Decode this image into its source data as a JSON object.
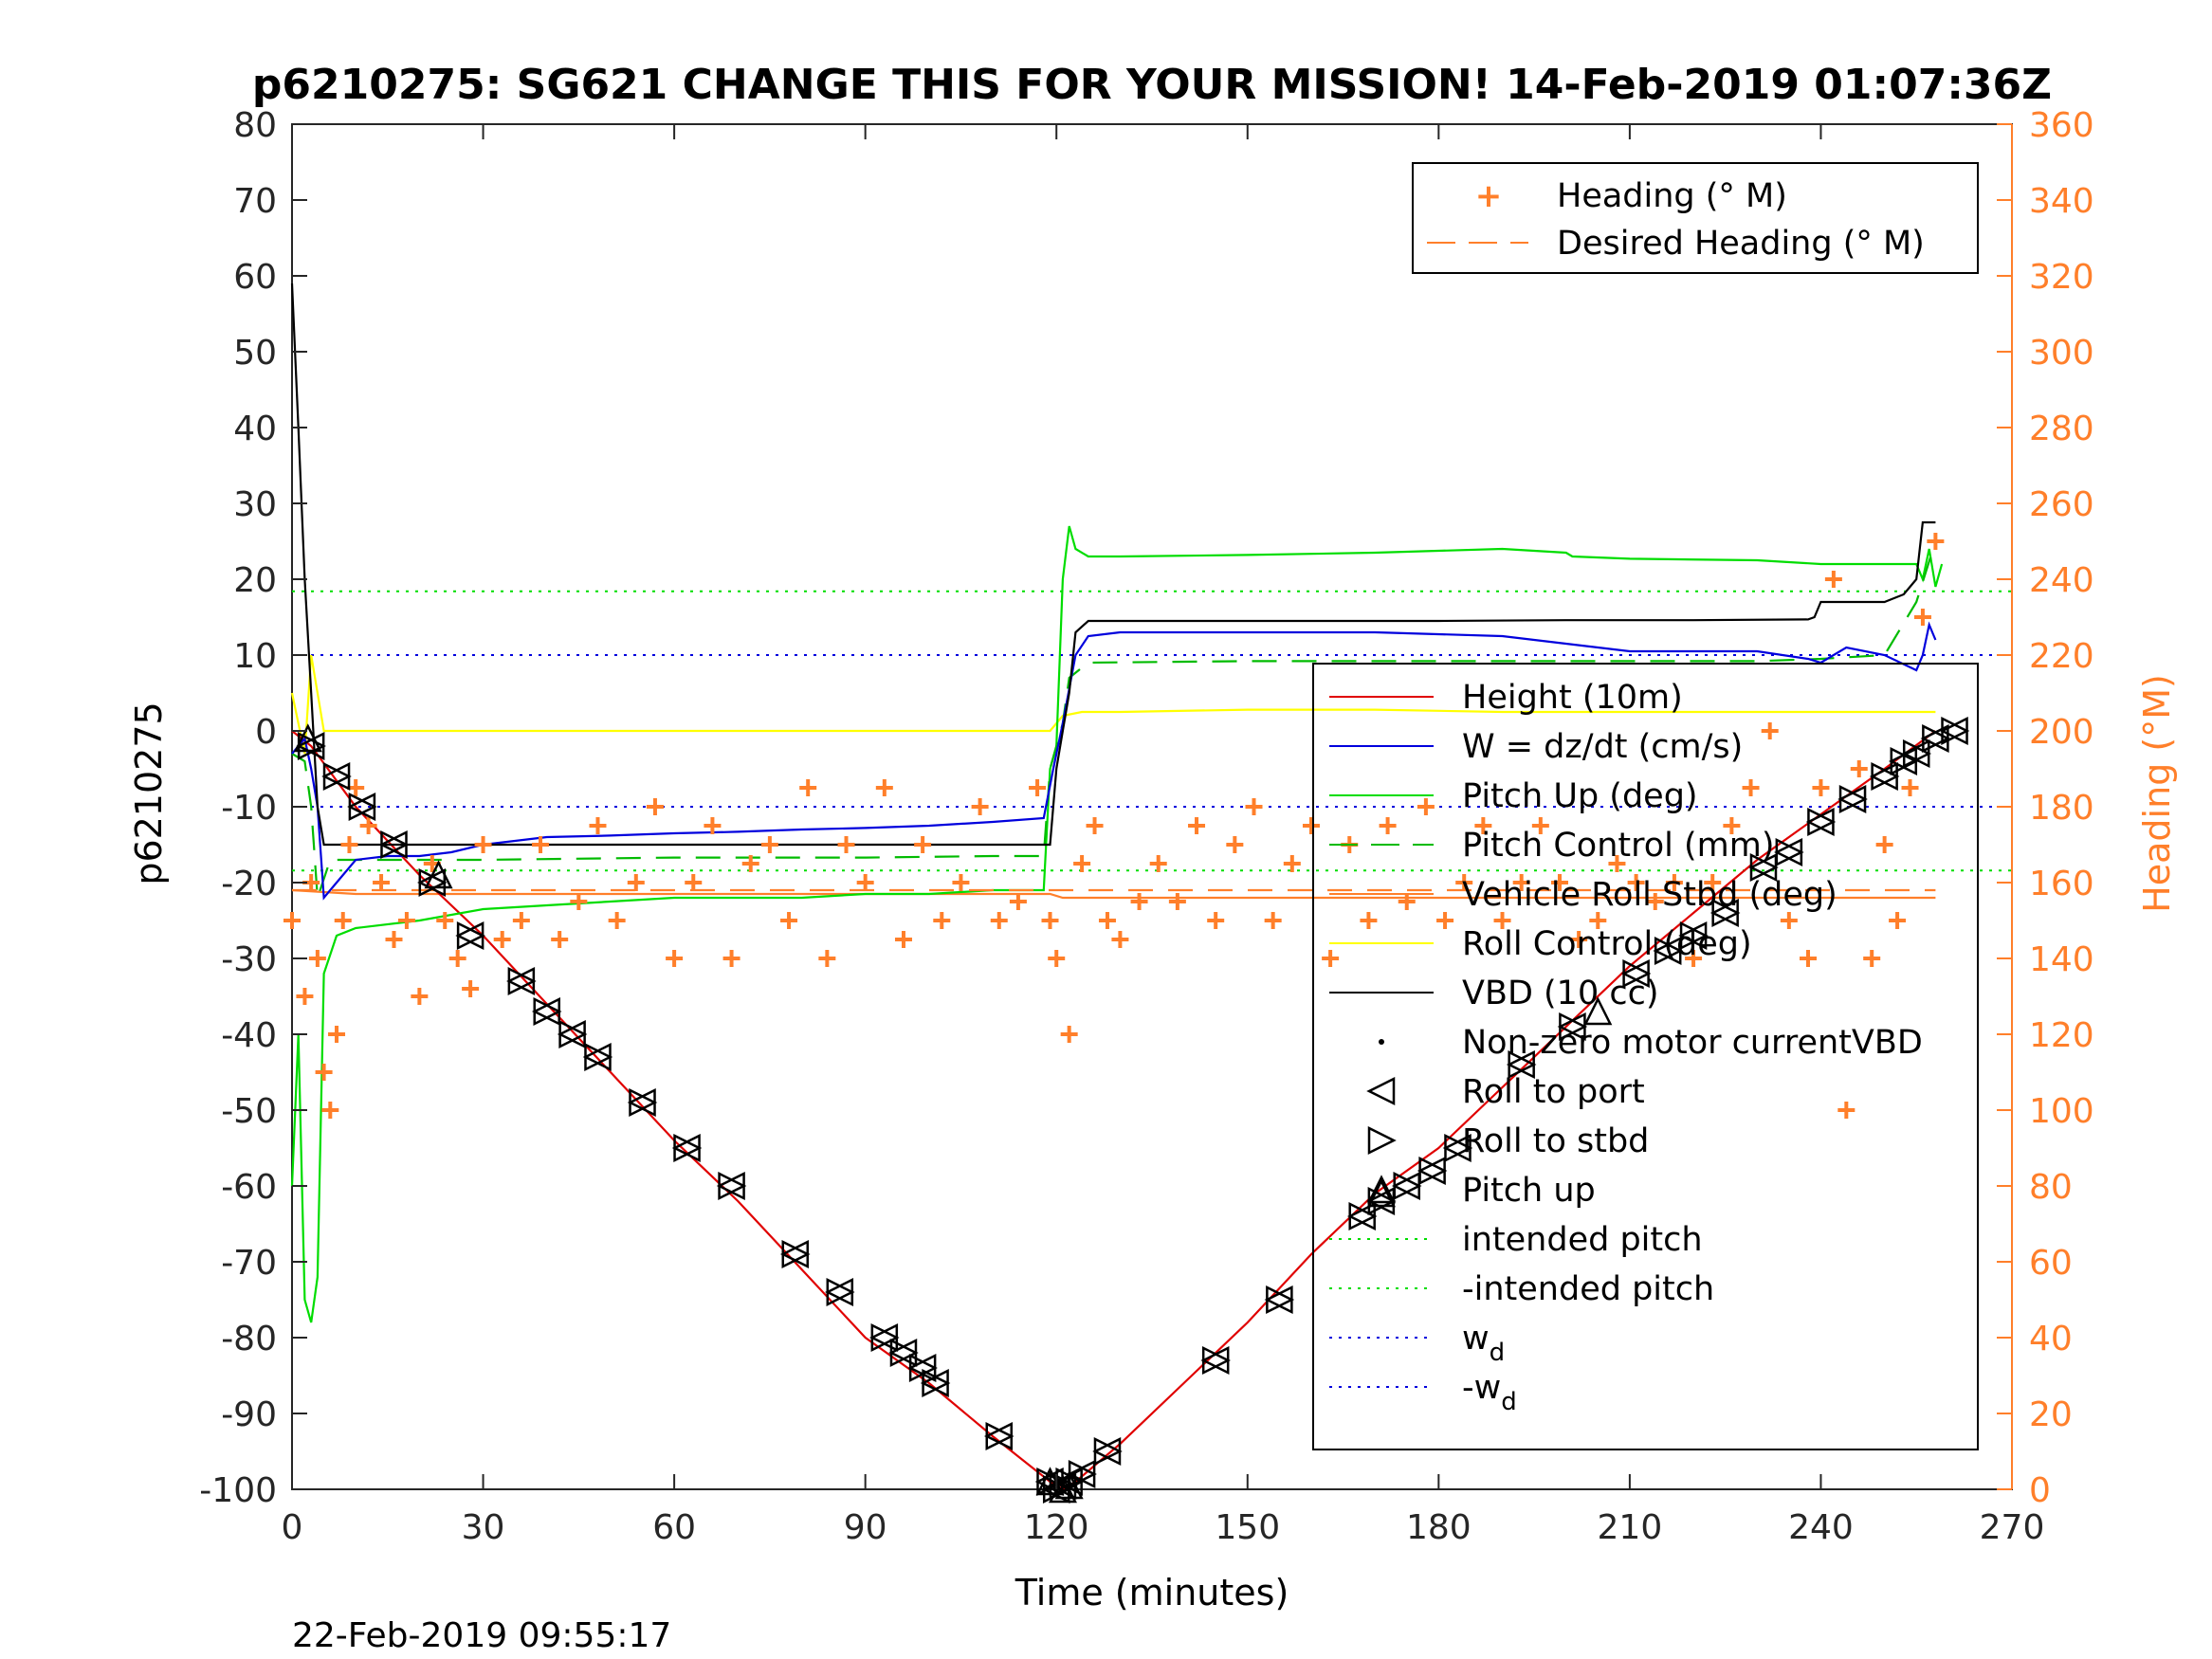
{
  "chart_data": {
    "type": "line",
    "title": "p6210275: SG621 CHANGE THIS FOR YOUR MISSION! 14-Feb-2019 01:07:36Z",
    "xlabel": "Time (minutes)",
    "ylabel": "p6210275",
    "y2label": "Heading (°M)",
    "xlim": [
      0,
      270
    ],
    "ylim": [
      -100,
      80
    ],
    "y2lim": [
      0,
      360
    ],
    "xticks": [
      "0",
      "30",
      "60",
      "90",
      "120",
      "150",
      "180",
      "210",
      "240",
      "270"
    ],
    "yticks": [
      "80",
      "70",
      "60",
      "50",
      "40",
      "30",
      "20",
      "10",
      "0",
      "-10",
      "-20",
      "-30",
      "-40",
      "-50",
      "-60",
      "-70",
      "-80",
      "-90",
      "-100"
    ],
    "y2ticks": [
      "360",
      "340",
      "320",
      "300",
      "280",
      "260",
      "240",
      "220",
      "200",
      "180",
      "160",
      "140",
      "120",
      "100",
      "80",
      "60",
      "40",
      "20",
      "0"
    ],
    "grid": false,
    "timestamp": "22-Feb-2019 09:55:17",
    "legend_right_axis": {
      "placement": "top-right",
      "entries": [
        {
          "label": "Heading (° M)",
          "color": "#ff7f2a"
        },
        {
          "label": "Desired Heading (° M)",
          "color": "#ff7f2a"
        }
      ]
    },
    "legend_left_axis": {
      "placement": "right",
      "entries": [
        {
          "label": "Height (10m)",
          "color": "#e00000"
        },
        {
          "label": "W = dz/dt (cm/s)",
          "color": "#0000dd"
        },
        {
          "label": "Pitch Up (deg)",
          "color": "#00dd00"
        },
        {
          "label": "Pitch Control (mm)",
          "color": "#00bb00"
        },
        {
          "label": "Vehicle Roll Stbd (deg)",
          "color": "#ff7f2a"
        },
        {
          "label": "Roll Control (deg)",
          "color": "#ffff00"
        },
        {
          "label": "VBD (10 cc)",
          "color": "#000000"
        },
        {
          "label": "Non-zero motor currentVBD",
          "color": "#000000"
        },
        {
          "label": "Roll to port",
          "color": "#000000"
        },
        {
          "label": "Roll to stbd",
          "color": "#000000"
        },
        {
          "label": "Pitch up",
          "color": "#000000"
        },
        {
          "label": "intended pitch",
          "color": "#00dd00"
        },
        {
          "label": "-intended pitch",
          "color": "#00dd00"
        },
        {
          "label": "w",
          "sub": "d",
          "color": "#0000dd"
        },
        {
          "label": "-w",
          "sub": "d",
          "color": "#0000dd"
        }
      ]
    },
    "reference_lines": {
      "intended_pitch": 18.4,
      "neg_intended_pitch": -18.4,
      "w_d": 10,
      "neg_w_d": -10
    },
    "series": [
      {
        "name": "Height (10m)",
        "axis": "left",
        "color": "#e00000",
        "x": [
          0,
          3,
          10,
          20,
          30,
          40,
          50,
          60,
          70,
          80,
          90,
          100,
          110,
          119,
          121,
          123,
          130,
          140,
          150,
          160,
          170,
          180,
          190,
          200,
          210,
          220,
          230,
          240,
          250,
          258
        ],
        "y": [
          0,
          -2,
          -10,
          -19,
          -27,
          -36,
          -45,
          -54,
          -62,
          -71,
          -80,
          -86,
          -93,
          -99,
          -100,
          -99,
          -94,
          -86,
          -78,
          -69,
          -61,
          -55,
          -47,
          -39,
          -31,
          -24,
          -17,
          -11,
          -5,
          0
        ]
      },
      {
        "name": "W = dz/dt (cm/s)",
        "axis": "left",
        "color": "#0000dd",
        "x": [
          0,
          2,
          3,
          4,
          5,
          7,
          10,
          15,
          20,
          25,
          30,
          40,
          50,
          60,
          70,
          80,
          90,
          100,
          110,
          118,
          119.5,
          121,
          123,
          125,
          130,
          150,
          170,
          190,
          200,
          210,
          220,
          230,
          238,
          240,
          244,
          250,
          255,
          256,
          257,
          258
        ],
        "y": [
          -3,
          -1,
          -5,
          -10,
          -22,
          -20,
          -17,
          -16.5,
          -16.5,
          -16,
          -15,
          -14,
          -13.8,
          -13.5,
          -13.3,
          -13,
          -12.8,
          -12.5,
          -12,
          -11.5,
          -5,
          1,
          10,
          12.5,
          13,
          13,
          13,
          12.5,
          11.5,
          10.5,
          10.5,
          10.5,
          9.5,
          9,
          11,
          10,
          8,
          10,
          14,
          12
        ]
      },
      {
        "name": "Pitch Up (deg)",
        "axis": "left",
        "color": "#00dd00",
        "x": [
          0,
          1,
          2,
          3,
          4,
          5,
          7,
          10,
          20,
          30,
          40,
          50,
          60,
          70,
          80,
          90,
          100,
          110,
          118,
          119,
          120,
          121,
          122,
          123,
          125,
          130,
          150,
          170,
          190,
          200,
          201,
          210,
          230,
          240,
          250,
          255,
          256,
          257,
          258,
          259
        ],
        "y": [
          -60,
          -40,
          -75,
          -78,
          -72,
          -32,
          -27,
          -26,
          -25,
          -23.5,
          -23,
          -22.5,
          -22,
          -22,
          -22,
          -21.5,
          -21.5,
          -21,
          -21,
          -5,
          -2,
          20,
          27,
          24,
          23,
          23,
          23.2,
          23.5,
          24,
          23.5,
          23,
          22.7,
          22.5,
          22,
          22,
          22,
          20,
          24,
          19,
          22
        ]
      },
      {
        "name": "Pitch Control (mm)",
        "axis": "left",
        "color": "#00bb00",
        "dash": "26,16",
        "x": [
          0,
          2,
          3,
          4,
          6,
          10,
          30,
          60,
          90,
          110,
          118,
          119,
          121,
          122,
          125,
          150,
          180,
          210,
          230,
          240,
          250,
          255,
          258
        ],
        "y": [
          -3,
          -4,
          -10,
          -22,
          -17,
          -17,
          -17,
          -16.7,
          -16.7,
          -16.5,
          -16.5,
          -5,
          1,
          7,
          9,
          9.2,
          9.2,
          9.2,
          9.2,
          9.5,
          10,
          17,
          25
        ]
      },
      {
        "name": "Vehicle Roll Stbd (deg)",
        "axis": "left",
        "color": "#ff7f2a",
        "x": [
          0,
          10,
          20,
          40,
          60,
          80,
          100,
          119,
          121,
          130,
          150,
          170,
          190,
          210,
          230,
          258
        ],
        "y": [
          -21,
          -21.5,
          -21.5,
          -21.5,
          -21.5,
          -21.5,
          -21.5,
          -21.5,
          -22,
          -22,
          -22,
          -22,
          -22,
          -22,
          -22,
          -22
        ]
      },
      {
        "name": "Roll Control (deg)",
        "axis": "left",
        "color": "#ffff00",
        "x": [
          0,
          2,
          3,
          5,
          10,
          20,
          30,
          40,
          50,
          60,
          70,
          80,
          90,
          100,
          110,
          119,
          121,
          124,
          130,
          150,
          170,
          190,
          210,
          230,
          240,
          250,
          258
        ],
        "y": [
          5,
          -3,
          10,
          0,
          0,
          0,
          0,
          0,
          0,
          0,
          0,
          0,
          0,
          0,
          0,
          0,
          2,
          2.5,
          2.5,
          2.8,
          2.8,
          2.5,
          2.5,
          2.5,
          2.5,
          2.5,
          2.5
        ]
      },
      {
        "name": "VBD (10 cc)",
        "axis": "left",
        "color": "#000000",
        "x": [
          0,
          1,
          2,
          3,
          4,
          5,
          10,
          20,
          40,
          60,
          80,
          100,
          119,
          120,
          121,
          122,
          123,
          125,
          140,
          160,
          180,
          200,
          220,
          238,
          239,
          240,
          250,
          253,
          254,
          255,
          256,
          258
        ],
        "y": [
          59,
          40,
          20,
          5,
          -10,
          -15,
          -15,
          -15,
          -15,
          -15,
          -15,
          -15,
          -15,
          -5,
          0,
          5,
          13,
          14.5,
          14.5,
          14.5,
          14.5,
          14.6,
          14.6,
          14.7,
          15,
          17,
          17,
          18,
          19,
          20,
          27.5,
          27.5
        ]
      },
      {
        "name": "Heading (° M)",
        "axis": "right",
        "color": "#ff7f2a",
        "marker": "plus",
        "x": [
          0,
          2,
          3,
          4,
          5,
          6,
          7,
          8,
          9,
          10,
          12,
          14,
          16,
          18,
          20,
          22,
          24,
          26,
          28,
          30,
          33,
          36,
          39,
          42,
          45,
          48,
          51,
          54,
          57,
          60,
          63,
          66,
          69,
          72,
          75,
          78,
          81,
          84,
          87,
          90,
          93,
          96,
          99,
          102,
          105,
          108,
          111,
          114,
          117,
          119,
          120,
          122,
          124,
          126,
          128,
          130,
          133,
          136,
          139,
          142,
          145,
          148,
          151,
          154,
          157,
          160,
          163,
          166,
          169,
          172,
          175,
          178,
          181,
          184,
          187,
          190,
          193,
          196,
          199,
          202,
          205,
          208,
          211,
          214,
          217,
          220,
          223,
          226,
          229,
          232,
          235,
          238,
          240,
          242,
          244,
          246,
          248,
          250,
          252,
          254,
          256,
          258
        ],
        "y": [
          150,
          130,
          160,
          140,
          110,
          100,
          120,
          150,
          170,
          185,
          175,
          160,
          145,
          150,
          130,
          165,
          150,
          140,
          132,
          170,
          145,
          150,
          170,
          145,
          155,
          175,
          150,
          160,
          180,
          140,
          160,
          175,
          140,
          165,
          170,
          150,
          185,
          140,
          170,
          160,
          185,
          145,
          170,
          150,
          160,
          180,
          150,
          155,
          185,
          150,
          140,
          120,
          165,
          175,
          150,
          145,
          155,
          165,
          155,
          175,
          150,
          170,
          180,
          150,
          165,
          175,
          140,
          170,
          150,
          175,
          155,
          180,
          150,
          160,
          175,
          150,
          160,
          175,
          160,
          145,
          150,
          165,
          160,
          155,
          160,
          140,
          160,
          175,
          185,
          200,
          150,
          140,
          185,
          240,
          100,
          190,
          140,
          170,
          150,
          185,
          230,
          250
        ]
      },
      {
        "name": "Desired Heading (° M)",
        "axis": "right",
        "color": "#ff7f2a",
        "dash": "26,16",
        "x": [
          0,
          258
        ],
        "y": [
          158,
          158
        ]
      }
    ],
    "markers": {
      "roll_to_port_stbd": {
        "color": "#000000",
        "x": [
          3,
          7,
          11,
          16,
          22,
          28,
          36,
          40,
          44,
          48,
          55,
          62,
          69,
          79,
          86,
          93,
          96,
          99,
          101,
          111,
          119,
          120,
          121,
          122,
          124,
          128,
          145,
          155,
          168,
          171,
          175,
          179,
          183,
          193,
          201,
          211,
          216,
          220,
          225,
          231,
          235,
          240,
          245,
          250,
          253,
          255,
          258,
          261
        ],
        "y": [
          -2,
          -6,
          -10,
          -15,
          -20,
          -27,
          -33,
          -37,
          -40,
          -43,
          -49,
          -55,
          -60,
          -69,
          -74,
          -80,
          -82,
          -84,
          -86,
          -93,
          -99,
          -100,
          -99.5,
          -99,
          -98,
          -95,
          -83,
          -75,
          -64,
          -62,
          -60,
          -58,
          -55,
          -44,
          -39,
          -32,
          -29,
          -27,
          -24,
          -18,
          -16,
          -12,
          -9,
          -6,
          -4,
          -3,
          -1,
          0
        ]
      },
      "pitch_up": {
        "color": "#000000",
        "x": [
          2.5,
          23,
          119,
          121,
          122,
          171,
          205
        ],
        "y": [
          -1,
          -19,
          -99,
          -100,
          -99.5,
          -61,
          -37
        ]
      }
    }
  }
}
